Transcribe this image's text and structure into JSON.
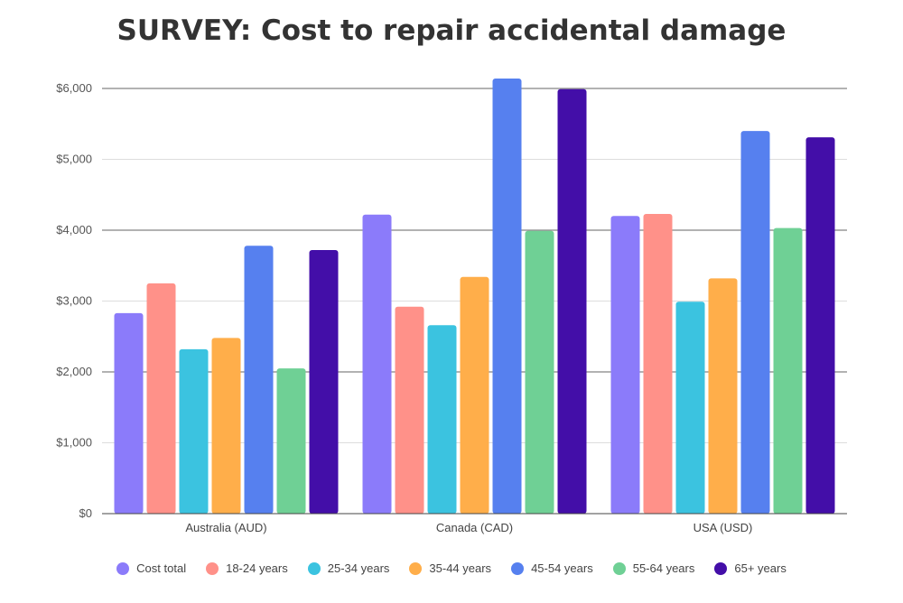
{
  "chart_data": {
    "type": "bar",
    "title": "SURVEY: Cost to repair accidental damage",
    "categories": [
      "Australia (AUD)",
      "Canada (CAD)",
      "USA (USD)"
    ],
    "series": [
      {
        "name": "Cost total",
        "color": "#8B7BFA",
        "values": [
          2830,
          4220,
          4200
        ]
      },
      {
        "name": "18-24 years",
        "color": "#FF9189",
        "values": [
          3250,
          2920,
          4230
        ]
      },
      {
        "name": "25-34 years",
        "color": "#3BC3E0",
        "values": [
          2320,
          2660,
          2990
        ]
      },
      {
        "name": "35-44 years",
        "color": "#FFAE4A",
        "values": [
          2480,
          3340,
          3320
        ]
      },
      {
        "name": "45-54 years",
        "color": "#5680EF",
        "values": [
          3780,
          6140,
          5400
        ]
      },
      {
        "name": "55-64 years",
        "color": "#6FD095",
        "values": [
          2050,
          3990,
          4030
        ]
      },
      {
        "name": "65+ years",
        "color": "#430EA8",
        "values": [
          3720,
          5990,
          5310
        ]
      }
    ],
    "y_ticks": [
      {
        "value": 0,
        "label": "$0"
      },
      {
        "value": 1000,
        "label": "$1,000"
      },
      {
        "value": 2000,
        "label": "$2,000"
      },
      {
        "value": 3000,
        "label": "$3,000"
      },
      {
        "value": 4000,
        "label": "$4,000"
      },
      {
        "value": 5000,
        "label": "$5,000"
      },
      {
        "value": 6000,
        "label": "$6,000"
      }
    ],
    "xlabel": "",
    "ylabel": "",
    "legend_position": "bottom",
    "grid": true
  }
}
